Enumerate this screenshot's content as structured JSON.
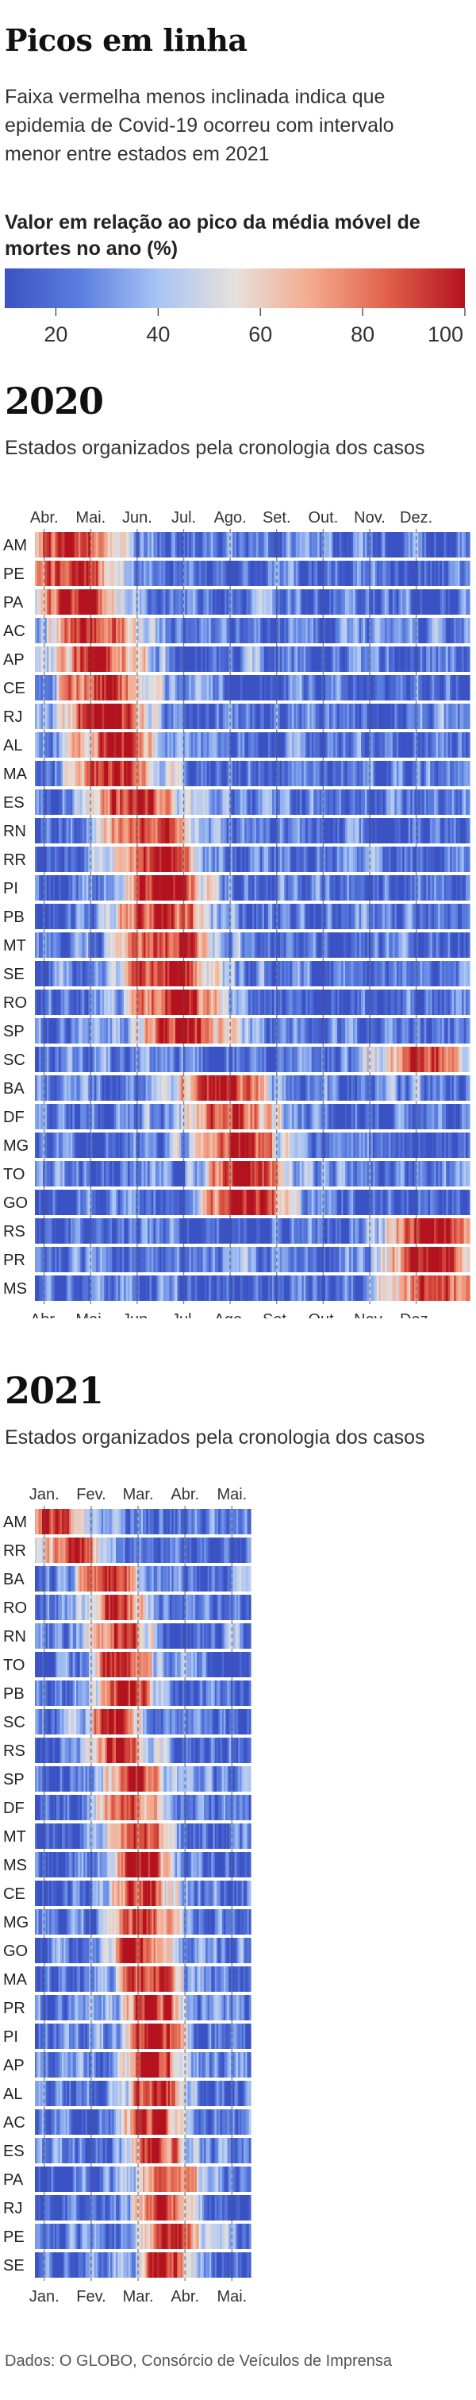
{
  "header": {
    "title": "Picos em linha",
    "subtitle": "Faixa vermelha menos inclinada indica que epidemia de Covid-19 ocorreu com intervalo menor entre estados em 2021"
  },
  "legend": {
    "title": "Valor em relação ao pico da média móvel de mortes no ano (%)",
    "ticks": [
      "20",
      "40",
      "60",
      "80",
      "100"
    ],
    "colors": [
      "#3b52c4",
      "#5b7fe0",
      "#a9c4f5",
      "#e6e1dc",
      "#f4a98e",
      "#e0604a",
      "#b3121e"
    ]
  },
  "section_2020": {
    "year": "2020",
    "subtitle": "Estados organizados pela cronologia dos casos"
  },
  "section_2021": {
    "year": "2021",
    "subtitle": "Estados organizados pela cronologia dos casos"
  },
  "source": "Dados: O GLOBO, Consórcio de Veículos de Imprensa",
  "chart_data": [
    {
      "type": "heatmap",
      "id": "2020",
      "title": "2020",
      "months": [
        "Abr.",
        "Mai.",
        "Jun.",
        "Jul.",
        "Ago.",
        "Set.",
        "Out.",
        "Nov.",
        "Dez."
      ],
      "x_range": [
        "Mar.",
        "Dez."
      ],
      "value_unit": "% do pico",
      "value_range": [
        0,
        100
      ],
      "states": [
        {
          "name": "AM",
          "peak_month": 1.5
        },
        {
          "name": "PE",
          "peak_month": 1.6
        },
        {
          "name": "PA",
          "peak_month": 1.7
        },
        {
          "name": "AC",
          "peak_month": 2.1
        },
        {
          "name": "AP",
          "peak_month": 2.2
        },
        {
          "name": "CE",
          "peak_month": 2.2
        },
        {
          "name": "RJ",
          "peak_month": 2.3
        },
        {
          "name": "AL",
          "peak_month": 2.6
        },
        {
          "name": "MA",
          "peak_month": 2.5
        },
        {
          "name": "ES",
          "peak_month": 2.9
        },
        {
          "name": "RN",
          "peak_month": 3.2
        },
        {
          "name": "RR",
          "peak_month": 3.3
        },
        {
          "name": "PI",
          "peak_month": 3.6
        },
        {
          "name": "PB",
          "peak_month": 3.5
        },
        {
          "name": "MT",
          "peak_month": 3.7
        },
        {
          "name": "SE",
          "peak_month": 3.6
        },
        {
          "name": "RO",
          "peak_month": 3.8
        },
        {
          "name": "SP",
          "peak_month": 4.0
        },
        {
          "name": "SC",
          "peak_month": 9.2
        },
        {
          "name": "BA",
          "peak_month": 4.8
        },
        {
          "name": "DF",
          "peak_month": 5.0
        },
        {
          "name": "MG",
          "peak_month": 5.2
        },
        {
          "name": "TO",
          "peak_month": 5.3
        },
        {
          "name": "GO",
          "peak_month": 5.4
        },
        {
          "name": "RS",
          "peak_month": 9.3
        },
        {
          "name": "PR",
          "peak_month": 9.3
        },
        {
          "name": "MS",
          "peak_month": 9.4
        }
      ]
    },
    {
      "type": "heatmap",
      "id": "2021",
      "title": "2021",
      "months": [
        "Jan.",
        "Fev.",
        "Mar.",
        "Abr.",
        "Mai."
      ],
      "x_range": [
        "Jan.",
        "Mai."
      ],
      "value_unit": "% do pico",
      "value_range": [
        0,
        100
      ],
      "states": [
        {
          "name": "AM",
          "peak_month": 1.2
        },
        {
          "name": "RR",
          "peak_month": 1.6
        },
        {
          "name": "BA",
          "peak_month": 2.4
        },
        {
          "name": "RO",
          "peak_month": 2.5
        },
        {
          "name": "RN",
          "peak_month": 2.6
        },
        {
          "name": "TO",
          "peak_month": 2.6
        },
        {
          "name": "PB",
          "peak_month": 2.8
        },
        {
          "name": "SC",
          "peak_month": 2.5
        },
        {
          "name": "RS",
          "peak_month": 2.6
        },
        {
          "name": "SP",
          "peak_month": 2.9
        },
        {
          "name": "DF",
          "peak_month": 2.8
        },
        {
          "name": "MT",
          "peak_month": 2.9
        },
        {
          "name": "MS",
          "peak_month": 3.0
        },
        {
          "name": "CE",
          "peak_month": 3.1
        },
        {
          "name": "MG",
          "peak_month": 3.2
        },
        {
          "name": "GO",
          "peak_month": 3.0
        },
        {
          "name": "MA",
          "peak_month": 3.2
        },
        {
          "name": "PR",
          "peak_month": 3.3
        },
        {
          "name": "PI",
          "peak_month": 3.4
        },
        {
          "name": "AP",
          "peak_month": 3.3
        },
        {
          "name": "AL",
          "peak_month": 3.4
        },
        {
          "name": "AC",
          "peak_month": 3.3
        },
        {
          "name": "ES",
          "peak_month": 3.5
        },
        {
          "name": "PA",
          "peak_month": 3.6
        },
        {
          "name": "RJ",
          "peak_month": 3.6
        },
        {
          "name": "PE",
          "peak_month": 3.7
        },
        {
          "name": "SE",
          "peak_month": 3.6
        }
      ]
    }
  ]
}
